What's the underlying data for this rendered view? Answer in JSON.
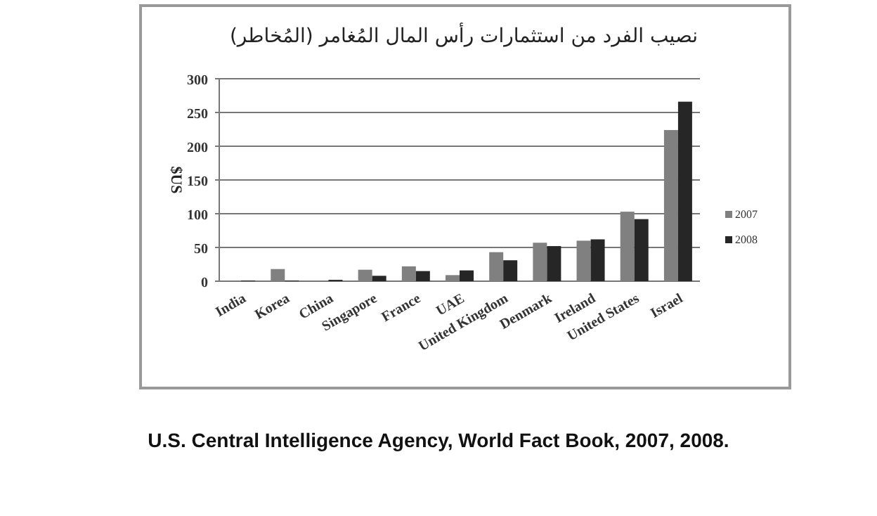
{
  "chart_data": {
    "type": "bar",
    "title": "نصيب الفرد من استثمارات رأس المال المُغامر (المُخاطر)",
    "ylabel": "$US",
    "categories": [
      "India",
      "Korea",
      "China",
      "Singapore",
      "France",
      "UAE",
      "United Kingdom",
      "Denmark",
      "Ireland",
      "United States",
      "Israel"
    ],
    "series": [
      {
        "name": "2007",
        "color": "#808080",
        "values": [
          null,
          18,
          null,
          17,
          22,
          9,
          43,
          57,
          60,
          103,
          224
        ]
      },
      {
        "name": "2008",
        "color": "#262626",
        "values": [
          1,
          1,
          2,
          8,
          15,
          16,
          31,
          52,
          62,
          92,
          266
        ]
      }
    ],
    "ylim": [
      0,
      300
    ],
    "yticks": [
      0,
      50,
      100,
      150,
      200,
      250,
      300
    ],
    "grid": "y",
    "legend": "right",
    "annotations": [
      "U.S. Central Intelligence Agency, World Fact Book, 2007, 2008."
    ]
  }
}
